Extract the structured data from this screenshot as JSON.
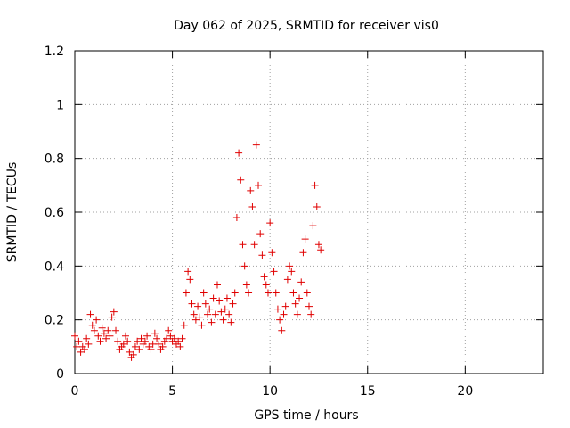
{
  "chart_data": {
    "type": "scatter",
    "title": "Day 062 of 2025, SRMTID for receiver vis0",
    "xlabel": "GPS time / hours",
    "ylabel": "SRMTID / TECUs",
    "xlim": [
      0,
      24
    ],
    "ylim": [
      0,
      1.2
    ],
    "xticks": [
      0,
      5,
      10,
      15,
      20
    ],
    "xtick_labels": [
      "0",
      "5",
      "10",
      "15",
      "20"
    ],
    "yticks": [
      0,
      0.2,
      0.4,
      0.6,
      0.8,
      1.0,
      1.2
    ],
    "ytick_labels": [
      "0",
      "0.2",
      "0.4",
      "0.6",
      "0.8",
      "1",
      "1.2"
    ],
    "grid": true,
    "marker": "+",
    "color": "#e00000",
    "series": [
      {
        "name": "vis0",
        "x": [
          0.0,
          0.1,
          0.2,
          0.3,
          0.4,
          0.5,
          0.6,
          0.7,
          0.8,
          0.9,
          1.0,
          1.1,
          1.2,
          1.3,
          1.4,
          1.5,
          1.6,
          1.7,
          1.8,
          1.9,
          2.0,
          2.1,
          2.2,
          2.3,
          2.4,
          2.5,
          2.6,
          2.7,
          2.8,
          2.9,
          3.0,
          3.1,
          3.2,
          3.3,
          3.4,
          3.5,
          3.6,
          3.7,
          3.8,
          3.9,
          4.0,
          4.1,
          4.2,
          4.3,
          4.4,
          4.5,
          4.6,
          4.7,
          4.8,
          4.9,
          5.0,
          5.1,
          5.2,
          5.3,
          5.4,
          5.5,
          5.6,
          5.7,
          5.8,
          5.9,
          6.0,
          6.1,
          6.2,
          6.3,
          6.4,
          6.5,
          6.6,
          6.7,
          6.8,
          6.9,
          7.0,
          7.1,
          7.2,
          7.3,
          7.4,
          7.5,
          7.6,
          7.7,
          7.8,
          7.9,
          8.0,
          8.1,
          8.2,
          8.3,
          8.4,
          8.5,
          8.6,
          8.7,
          8.8,
          8.9,
          9.0,
          9.1,
          9.2,
          9.3,
          9.4,
          9.5,
          9.6,
          9.7,
          9.8,
          9.9,
          10.0,
          10.1,
          10.2,
          10.3,
          10.4,
          10.5,
          10.6,
          10.7,
          10.8,
          10.9,
          11.0,
          11.1,
          11.2,
          11.3,
          11.4,
          11.5,
          11.6,
          11.7,
          11.8,
          11.9,
          12.0,
          12.1,
          12.2,
          12.3,
          12.4,
          12.5,
          12.6
        ],
        "y": [
          0.14,
          0.1,
          0.12,
          0.08,
          0.1,
          0.09,
          0.13,
          0.11,
          0.22,
          0.18,
          0.16,
          0.2,
          0.14,
          0.12,
          0.17,
          0.15,
          0.13,
          0.16,
          0.14,
          0.21,
          0.23,
          0.16,
          0.12,
          0.09,
          0.1,
          0.11,
          0.14,
          0.12,
          0.08,
          0.06,
          0.07,
          0.1,
          0.12,
          0.09,
          0.13,
          0.11,
          0.12,
          0.14,
          0.1,
          0.09,
          0.11,
          0.15,
          0.13,
          0.11,
          0.09,
          0.1,
          0.12,
          0.13,
          0.16,
          0.14,
          0.12,
          0.13,
          0.11,
          0.12,
          0.1,
          0.13,
          0.18,
          0.3,
          0.38,
          0.35,
          0.26,
          0.22,
          0.2,
          0.25,
          0.21,
          0.18,
          0.3,
          0.26,
          0.22,
          0.24,
          0.19,
          0.28,
          0.22,
          0.33,
          0.27,
          0.23,
          0.2,
          0.24,
          0.28,
          0.22,
          0.19,
          0.26,
          0.3,
          0.58,
          0.82,
          0.72,
          0.48,
          0.4,
          0.33,
          0.3,
          0.68,
          0.62,
          0.48,
          0.85,
          0.7,
          0.52,
          0.44,
          0.36,
          0.33,
          0.3,
          0.56,
          0.45,
          0.38,
          0.3,
          0.24,
          0.2,
          0.16,
          0.22,
          0.25,
          0.35,
          0.4,
          0.38,
          0.3,
          0.26,
          0.22,
          0.28,
          0.34,
          0.45,
          0.5,
          0.3,
          0.25,
          0.22,
          0.55,
          0.7,
          0.62,
          0.48,
          0.46
        ]
      }
    ]
  }
}
